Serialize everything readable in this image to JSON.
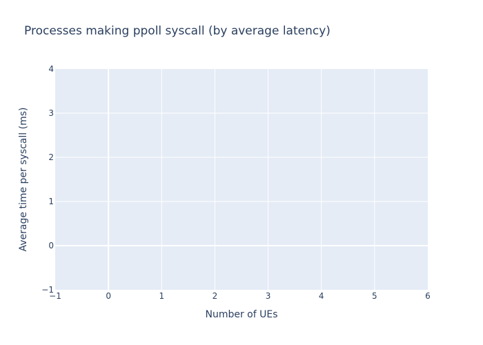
{
  "chart_data": {
    "type": "line",
    "title": "Processes making ppoll syscall (by average latency)",
    "xlabel": "Number of UEs",
    "ylabel": "Average time per syscall (ms)",
    "xlim": [
      -1,
      6
    ],
    "ylim": [
      -1,
      4
    ],
    "x_ticks": [
      -1,
      0,
      1,
      2,
      3,
      4,
      5,
      6
    ],
    "y_ticks": [
      -1,
      0,
      1,
      2,
      3,
      4
    ],
    "series": [],
    "grid": true,
    "legend": "none",
    "colors": {
      "plot_background": "#e5ecf6",
      "grid": "#ffffff",
      "text": "#2a3f5f"
    }
  }
}
